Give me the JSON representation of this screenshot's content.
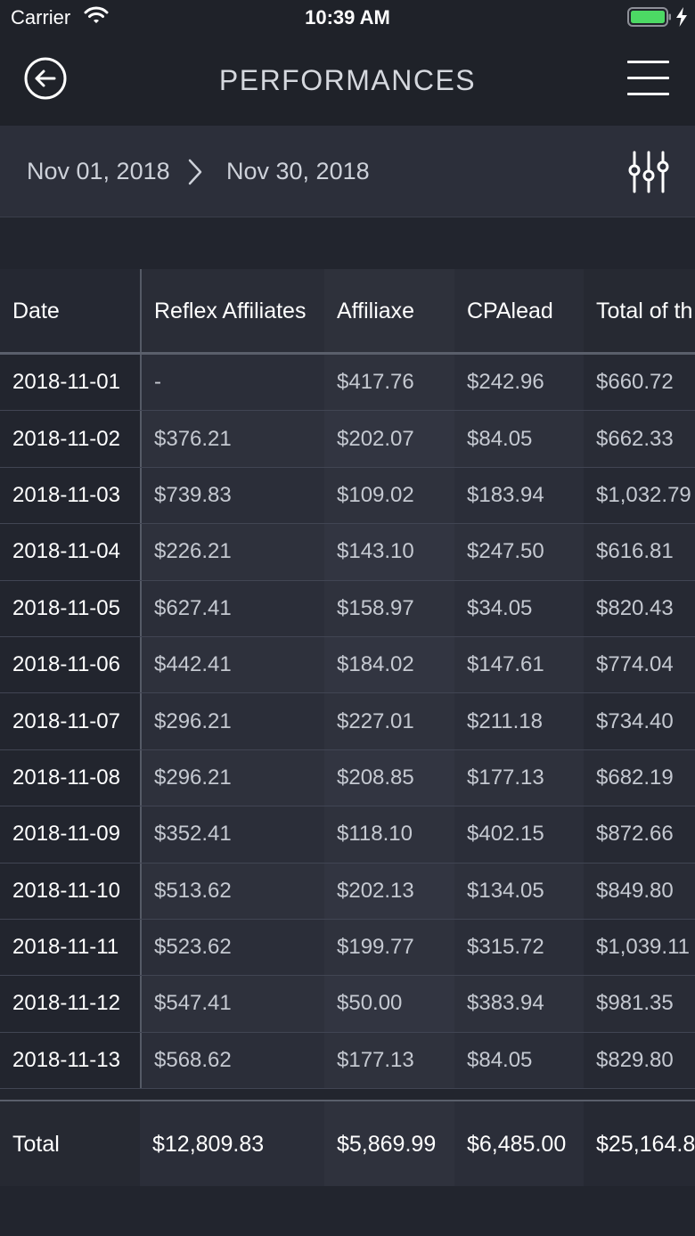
{
  "status_bar": {
    "carrier": "Carrier",
    "time": "10:39 AM",
    "battery_color": "#4cd964"
  },
  "nav": {
    "title": "PERFORMANCES",
    "back_icon": "arrow-left-circle-icon",
    "menu_icon": "hamburger-menu-icon"
  },
  "date_range": {
    "start": "Nov 01, 2018",
    "end": "Nov 30, 2018",
    "separator_icon": "chevron-right-icon",
    "filter_icon": "sliders-icon"
  },
  "table": {
    "columns": [
      "Date",
      "Reflex Affiliates",
      "Affiliaxe",
      "CPAlead",
      "Total of th"
    ],
    "rows": [
      [
        "2018-11-01",
        "-",
        "$417.76",
        "$242.96",
        "$660.72"
      ],
      [
        "2018-11-02",
        "$376.21",
        "$202.07",
        "$84.05",
        "$662.33"
      ],
      [
        "2018-11-03",
        "$739.83",
        "$109.02",
        "$183.94",
        "$1,032.79"
      ],
      [
        "2018-11-04",
        "$226.21",
        "$143.10",
        "$247.50",
        "$616.81"
      ],
      [
        "2018-11-05",
        "$627.41",
        "$158.97",
        "$34.05",
        "$820.43"
      ],
      [
        "2018-11-06",
        "$442.41",
        "$184.02",
        "$147.61",
        "$774.04"
      ],
      [
        "2018-11-07",
        "$296.21",
        "$227.01",
        "$211.18",
        "$734.40"
      ],
      [
        "2018-11-08",
        "$296.21",
        "$208.85",
        "$177.13",
        "$682.19"
      ],
      [
        "2018-11-09",
        "$352.41",
        "$118.10",
        "$402.15",
        "$872.66"
      ],
      [
        "2018-11-10",
        "$513.62",
        "$202.13",
        "$134.05",
        "$849.80"
      ],
      [
        "2018-11-11",
        "$523.62",
        "$199.77",
        "$315.72",
        "$1,039.11"
      ],
      [
        "2018-11-12",
        "$547.41",
        "$50.00",
        "$383.94",
        "$981.35"
      ],
      [
        "2018-11-13",
        "$568.62",
        "$177.13",
        "$84.05",
        "$829.80"
      ]
    ],
    "total": [
      "Total",
      "$12,809.83",
      "$5,869.99",
      "$6,485.00",
      "$25,164.8"
    ]
  }
}
